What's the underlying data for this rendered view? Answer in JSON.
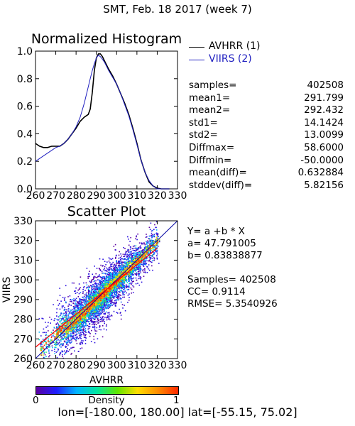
{
  "page": {
    "title": "SMT,  Feb. 18 2017 (week 7)",
    "region": "lon=[-180.00, 180.00] lat=[-55.15, 75.02]"
  },
  "legend": [
    {
      "name": "AVHRR (1)",
      "color": "#000000"
    },
    {
      "name": "VIIRS (2)",
      "color": "#2020c0"
    }
  ],
  "stats": [
    {
      "key": "samples=",
      "value": "402508"
    },
    {
      "key": "mean1=",
      "value": "291.799"
    },
    {
      "key": "mean2=",
      "value": "292.432"
    },
    {
      "key": "std1=",
      "value": "14.1424"
    },
    {
      "key": "std2=",
      "value": "13.0099"
    },
    {
      "key": "Diffmax=",
      "value": "58.6000"
    },
    {
      "key": "Diffmin=",
      "value": "-50.0000"
    },
    {
      "key": "mean(diff)=",
      "value": "0.632884"
    },
    {
      "key": "stddev(diff)=",
      "value": "5.82156"
    }
  ],
  "fit": {
    "equation": "Y= a +b * X",
    "a": "a= 47.791005",
    "b": "b= 0.83838877",
    "samples": "Samples= 402508",
    "cc": "CC=  0.9114",
    "rmse": "RMSE= 5.3540926"
  },
  "colorbar": {
    "label": "Density",
    "min": "0",
    "max": "1",
    "stops": [
      "#5a00a0",
      "#1e1eff",
      "#00b4ff",
      "#00e6a0",
      "#60e600",
      "#ffdc00",
      "#ff8c00",
      "#ff2800"
    ]
  },
  "chart_data": [
    {
      "type": "line",
      "title": "Normalized Histogram",
      "xlim": [
        260,
        330
      ],
      "ylim": [
        0,
        1.0
      ],
      "xticks": [
        "260",
        "270",
        "280",
        "290",
        "300",
        "310",
        "320",
        "330"
      ],
      "yticks": [
        "0.0",
        "0.2",
        "0.4",
        "0.6",
        "0.8",
        "1.0"
      ],
      "x": [
        260,
        262,
        264,
        266,
        268,
        270,
        272,
        274,
        276,
        278,
        280,
        282,
        284,
        286,
        287,
        288,
        289,
        290,
        291,
        292,
        293,
        294,
        295,
        296,
        298,
        300,
        302,
        304,
        306,
        308,
        310,
        312,
        314,
        316,
        318,
        320,
        322,
        324,
        326
      ],
      "series": [
        {
          "name": "AVHRR (1)",
          "color": "#000000",
          "values": [
            0.33,
            0.31,
            0.3,
            0.3,
            0.31,
            0.31,
            0.31,
            0.33,
            0.36,
            0.4,
            0.44,
            0.49,
            0.52,
            0.54,
            0.58,
            0.7,
            0.86,
            0.95,
            0.98,
            0.98,
            0.96,
            0.93,
            0.9,
            0.87,
            0.82,
            0.76,
            0.69,
            0.62,
            0.54,
            0.44,
            0.33,
            0.21,
            0.12,
            0.05,
            0.02,
            0.005,
            0.0,
            0.0,
            0.0
          ]
        },
        {
          "name": "VIIRS (2)",
          "color": "#2020c0",
          "values": [
            0.2,
            0.22,
            0.24,
            0.26,
            0.28,
            0.3,
            0.31,
            0.33,
            0.36,
            0.4,
            0.45,
            0.52,
            0.62,
            0.74,
            0.8,
            0.86,
            0.91,
            0.95,
            0.97,
            0.96,
            0.94,
            0.92,
            0.89,
            0.86,
            0.81,
            0.76,
            0.69,
            0.61,
            0.53,
            0.43,
            0.32,
            0.21,
            0.12,
            0.06,
            0.02,
            0.0,
            0.0,
            0.0,
            0.0
          ]
        }
      ]
    },
    {
      "type": "scatter",
      "title": "Scatter Plot",
      "xlabel": "AVHRR",
      "ylabel": "VIIRS",
      "xlim": [
        260,
        330
      ],
      "ylim": [
        260,
        330
      ],
      "xticks": [
        "260",
        "270",
        "280",
        "290",
        "300",
        "310",
        "320",
        "330"
      ],
      "yticks": [
        "260",
        "270",
        "280",
        "290",
        "300",
        "310",
        "320",
        "330"
      ],
      "fit": {
        "a": 47.791005,
        "b": 0.83838877,
        "color": "#ff0000"
      },
      "identity_line": {
        "color": "#0000a0"
      },
      "density_color": "jet"
    }
  ]
}
